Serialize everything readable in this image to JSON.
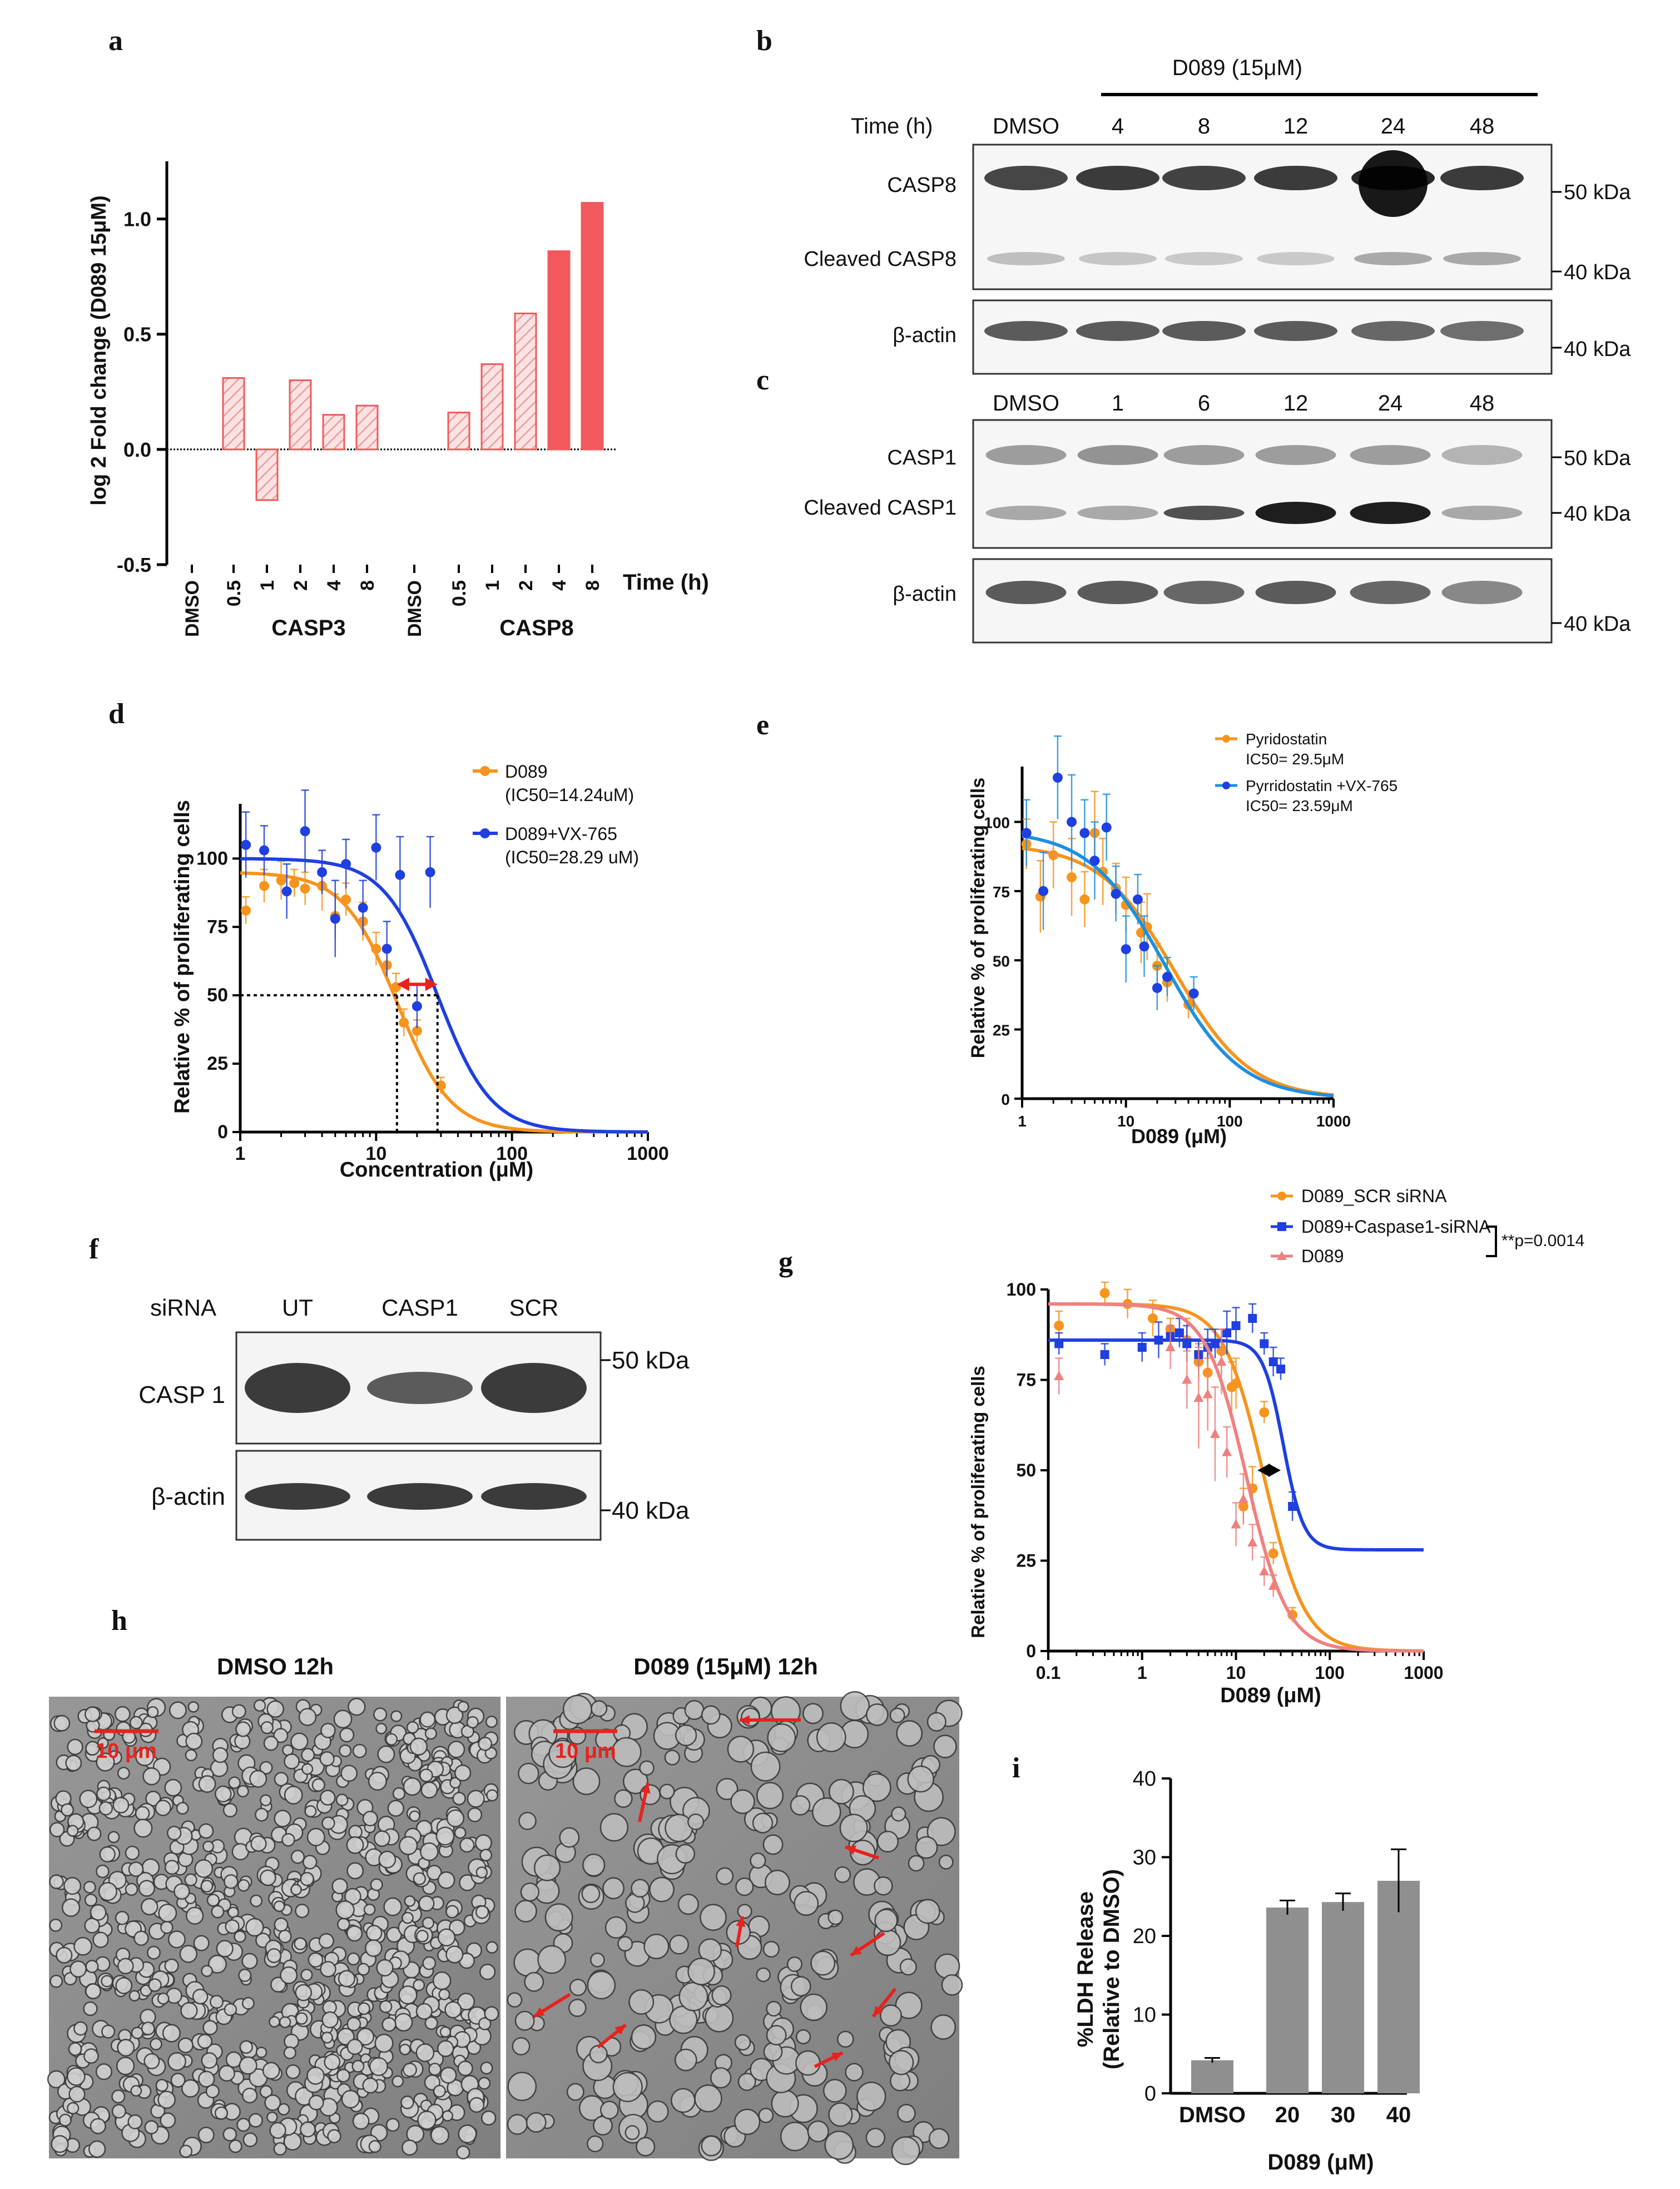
{
  "colors": {
    "bar_light": "#f6c9c9",
    "bar_dark": "#f1595c",
    "orange": "#f7941d",
    "blue": "#1f3fe0",
    "light_blue": "#1f8fe0",
    "pink": "#f08080",
    "red": "#e8221e",
    "lab_gray": "#8a8a8a"
  },
  "panel_a": {
    "letter": "a",
    "ylabel": "log 2 Fold change (D089 15μM)",
    "xlabel": "Time (h)",
    "group_labels": [
      "CASP3",
      "CASP8"
    ],
    "yticks": [
      "1.0",
      "0.5",
      "0.0",
      "-0.5"
    ],
    "categories": [
      "DMSO",
      "0.5",
      "1",
      "2",
      "4",
      "8",
      "DMSO",
      "0.5",
      "1",
      "2",
      "4",
      "8"
    ]
  },
  "panel_b": {
    "letter": "b",
    "treatment": "D089 (15μM)",
    "time_label": "Time (h)",
    "lanes": [
      "DMSO",
      "4",
      "8",
      "12",
      "24",
      "48"
    ],
    "rows": [
      "CASP8",
      "Cleaved CASP8",
      "β-actin"
    ],
    "markers": [
      "50 kDa",
      "40 kDa",
      "40 kDa"
    ]
  },
  "panel_c": {
    "letter": "c",
    "lanes": [
      "DMSO",
      "1",
      "6",
      "12",
      "24",
      "48"
    ],
    "rows": [
      "CASP1",
      "Cleaved CASP1",
      "β-actin"
    ],
    "markers": [
      "50 kDa",
      "40 kDa",
      "40 kDa"
    ]
  },
  "panel_d": {
    "letter": "d",
    "ylabel": "Relative % of proliferating cells",
    "xlabel": "Concentration (μM)",
    "yticks": [
      "100",
      "75",
      "50",
      "25",
      "0"
    ],
    "xticks": [
      "1",
      "10",
      "100",
      "1000"
    ],
    "legend": [
      {
        "name": "D089",
        "note": "(IC50=14.24uM)"
      },
      {
        "name": "D089+VX-765",
        "note": "(IC50=28.29 uM)"
      }
    ]
  },
  "panel_e": {
    "letter": "e",
    "ylabel": "Relative % of proliferating cells",
    "xlabel": "D089 (μM)",
    "yticks": [
      "100",
      "75",
      "50",
      "25",
      "0"
    ],
    "xticks": [
      "1",
      "10",
      "100",
      "1000"
    ],
    "legend": [
      {
        "name": "Pyridostatin",
        "note": "IC50= 29.5μM"
      },
      {
        "name": "Pyrridostatin +VX-765",
        "note": "IC50= 23.59μM"
      }
    ]
  },
  "panel_f": {
    "letter": "f",
    "siRNA_label": "siRNA",
    "lanes": [
      "UT",
      "CASP1",
      "SCR"
    ],
    "rows": [
      "CASP 1",
      "β-actin"
    ],
    "markers": [
      "50 kDa",
      "40 kDa"
    ]
  },
  "panel_g": {
    "letter": "g",
    "ylabel": "Relative % of proliferating cells",
    "xlabel": "D089 (μM)",
    "yticks": [
      "100",
      "75",
      "50",
      "25",
      "0"
    ],
    "xticks": [
      "0.1",
      "1",
      "10",
      "100",
      "1000"
    ],
    "legend": [
      "D089_SCR siRNA",
      "D089+Caspase1-siRNA",
      "D089"
    ],
    "pvalue": "**p=0.0014"
  },
  "panel_h": {
    "letter": "h",
    "titles": [
      "DMSO 12h",
      "D089 (15μM) 12h"
    ],
    "scale_bar": "10 μm"
  },
  "panel_i": {
    "letter": "i",
    "ylabel_line1": "%LDH Release",
    "ylabel_line2": "(Relative to DMSO)",
    "xlabel": "D089 (μM)",
    "yticks": [
      "40",
      "30",
      "20",
      "10",
      "0"
    ]
  },
  "chart_data": [
    {
      "panel": "a",
      "type": "bar",
      "title": "",
      "xlabel": "Time (h)",
      "ylabel": "log 2 Fold change (D089 15μM)",
      "ylim": [
        -0.5,
        1.25
      ],
      "categories": [
        "DMSO",
        "0.5",
        "1",
        "2",
        "4",
        "8",
        "DMSO",
        "0.5",
        "1",
        "2",
        "4",
        "8"
      ],
      "groups": [
        "CASP3",
        "CASP3",
        "CASP3",
        "CASP3",
        "CASP3",
        "CASP3",
        "CASP8",
        "CASP8",
        "CASP8",
        "CASP8",
        "CASP8",
        "CASP8"
      ],
      "values": [
        0,
        0.31,
        -0.22,
        0.3,
        0.15,
        0.19,
        0,
        0.16,
        0.37,
        0.59,
        0.86,
        1.07
      ],
      "style": [
        "light",
        "light",
        "light",
        "light",
        "light",
        "light",
        "light",
        "light",
        "light",
        "light",
        "dark",
        "dark"
      ]
    },
    {
      "panel": "d",
      "type": "scatter",
      "xscale": "log",
      "xlim": [
        1,
        1000
      ],
      "ylim": [
        0,
        120
      ],
      "xlabel": "Concentration (μM)",
      "ylabel": "Relative % of proliferating cells",
      "series": [
        {
          "name": "D089",
          "color": "orange",
          "ic50": 14.24,
          "hill": 2.2,
          "top": 95,
          "x": [
            1.1,
            1.5,
            2,
            2.5,
            3,
            4,
            5,
            6,
            8,
            10,
            12,
            14,
            16,
            20,
            30
          ],
          "y": [
            81,
            90,
            92,
            91,
            89,
            90,
            79,
            85,
            77,
            67,
            61,
            53,
            40,
            37,
            17
          ],
          "err": [
            5,
            6,
            7,
            5,
            6,
            9,
            8,
            6,
            7,
            6,
            6,
            5,
            5,
            4,
            3
          ]
        },
        {
          "name": "D089+VX-765",
          "color": "blue",
          "ic50": 28.29,
          "hill": 2.2,
          "top": 100,
          "x": [
            1.1,
            1.5,
            2.2,
            3,
            4,
            5,
            6,
            8,
            10,
            12,
            15,
            20,
            25
          ],
          "y": [
            105,
            103,
            88,
            110,
            95,
            78,
            98,
            82,
            104,
            67,
            94,
            46,
            95
          ],
          "err": [
            12,
            9,
            10,
            15,
            8,
            14,
            9,
            10,
            12,
            10,
            14,
            8,
            13
          ]
        }
      ],
      "annotations": {
        "ic50_line_y": 50,
        "ic50_values": [
          14.24,
          28.29
        ]
      }
    },
    {
      "panel": "e",
      "type": "scatter",
      "xscale": "log",
      "xlim": [
        1,
        1000
      ],
      "ylim": [
        0,
        120
      ],
      "xlabel": "D089 (μM)",
      "ylabel": "Relative % of proliferating cells",
      "series": [
        {
          "name": "Pyridostatin",
          "color": "orange",
          "ic50": 29.5,
          "hill": 1.2,
          "top": 92,
          "x": [
            1.1,
            1.5,
            2,
            3,
            4,
            5,
            6,
            8,
            10,
            14,
            16,
            20,
            25,
            40
          ],
          "y": [
            92,
            73,
            88,
            80,
            72,
            96,
            82,
            76,
            70,
            60,
            62,
            48,
            42,
            34
          ],
          "err": [
            9,
            13,
            12,
            14,
            10,
            15,
            12,
            9,
            10,
            11,
            12,
            8,
            7,
            5
          ]
        },
        {
          "name": "Pyrridostatin +VX-765",
          "color": "light_blue",
          "ic50": 23.59,
          "hill": 1.2,
          "top": 97,
          "x": [
            1.1,
            1.6,
            2.2,
            3,
            4,
            5,
            6.5,
            8,
            10,
            13,
            15,
            20,
            25,
            45
          ],
          "y": [
            96,
            75,
            116,
            100,
            96,
            86,
            98,
            74,
            54,
            72,
            55,
            40,
            44,
            38
          ],
          "err": [
            12,
            14,
            15,
            17,
            12,
            14,
            12,
            10,
            12,
            9,
            11,
            8,
            7,
            6
          ]
        }
      ]
    },
    {
      "panel": "g",
      "type": "scatter",
      "xscale": "log",
      "xlim": [
        0.1,
        1000
      ],
      "ylim": [
        0,
        100
      ],
      "xlabel": "D089 (μM)",
      "ylabel": "Relative % of proliferating cells",
      "series": [
        {
          "name": "D089_SCR siRNA",
          "color": "orange",
          "ic50": 20,
          "hill": 2,
          "top": 96,
          "bottom": 0,
          "x": [
            0.13,
            0.4,
            0.7,
            1.3,
            2,
            3,
            4,
            5,
            7,
            9,
            10,
            12,
            15,
            20,
            25,
            40
          ],
          "y": [
            90,
            99,
            96,
            92,
            89,
            86,
            80,
            77,
            83,
            73,
            74,
            40,
            45,
            66,
            27,
            10
          ],
          "err": [
            4,
            3,
            4,
            5,
            3,
            6,
            5,
            8,
            6,
            7,
            7,
            5,
            6,
            3,
            3,
            2
          ]
        },
        {
          "name": "D089+Caspase1-siRNA",
          "color": "blue",
          "ic50": 32,
          "hill": 4,
          "top": 86,
          "bottom": 28,
          "x": [
            0.13,
            0.4,
            1,
            1.5,
            2,
            2.5,
            3,
            4,
            5,
            6,
            8,
            10,
            15,
            20,
            25,
            30,
            40
          ],
          "y": [
            85,
            82,
            84,
            86,
            87,
            88,
            85,
            82,
            84,
            85,
            88,
            90,
            92,
            85,
            80,
            78,
            40
          ],
          "err": [
            3,
            3,
            4,
            5,
            3,
            4,
            5,
            4,
            5,
            4,
            6,
            5,
            4,
            3,
            4,
            3,
            4
          ]
        },
        {
          "name": "D089",
          "color": "pink",
          "ic50": 13,
          "hill": 2,
          "top": 96,
          "bottom": 0,
          "x": [
            0.13,
            2,
            3,
            4,
            5,
            6,
            7,
            8,
            10,
            12,
            15,
            20,
            25
          ],
          "y": [
            76,
            84,
            75,
            70,
            71,
            60,
            80,
            55,
            35,
            42,
            30,
            22,
            18
          ],
          "err": [
            5,
            6,
            8,
            14,
            10,
            13,
            9,
            7,
            6,
            7,
            5,
            4,
            3
          ]
        }
      ],
      "annotations": {
        "arrow_y": 50
      }
    },
    {
      "panel": "i",
      "type": "bar",
      "xlabel": "D089 (μM)",
      "ylabel": "%LDH Release (Relative to DMSO)",
      "ylim": [
        0,
        40
      ],
      "categories": [
        "DMSO",
        "20",
        "30",
        "40"
      ],
      "values": [
        4.2,
        23.6,
        24.3,
        27
      ],
      "errors": [
        0.3,
        0.9,
        1.1,
        4
      ]
    }
  ]
}
